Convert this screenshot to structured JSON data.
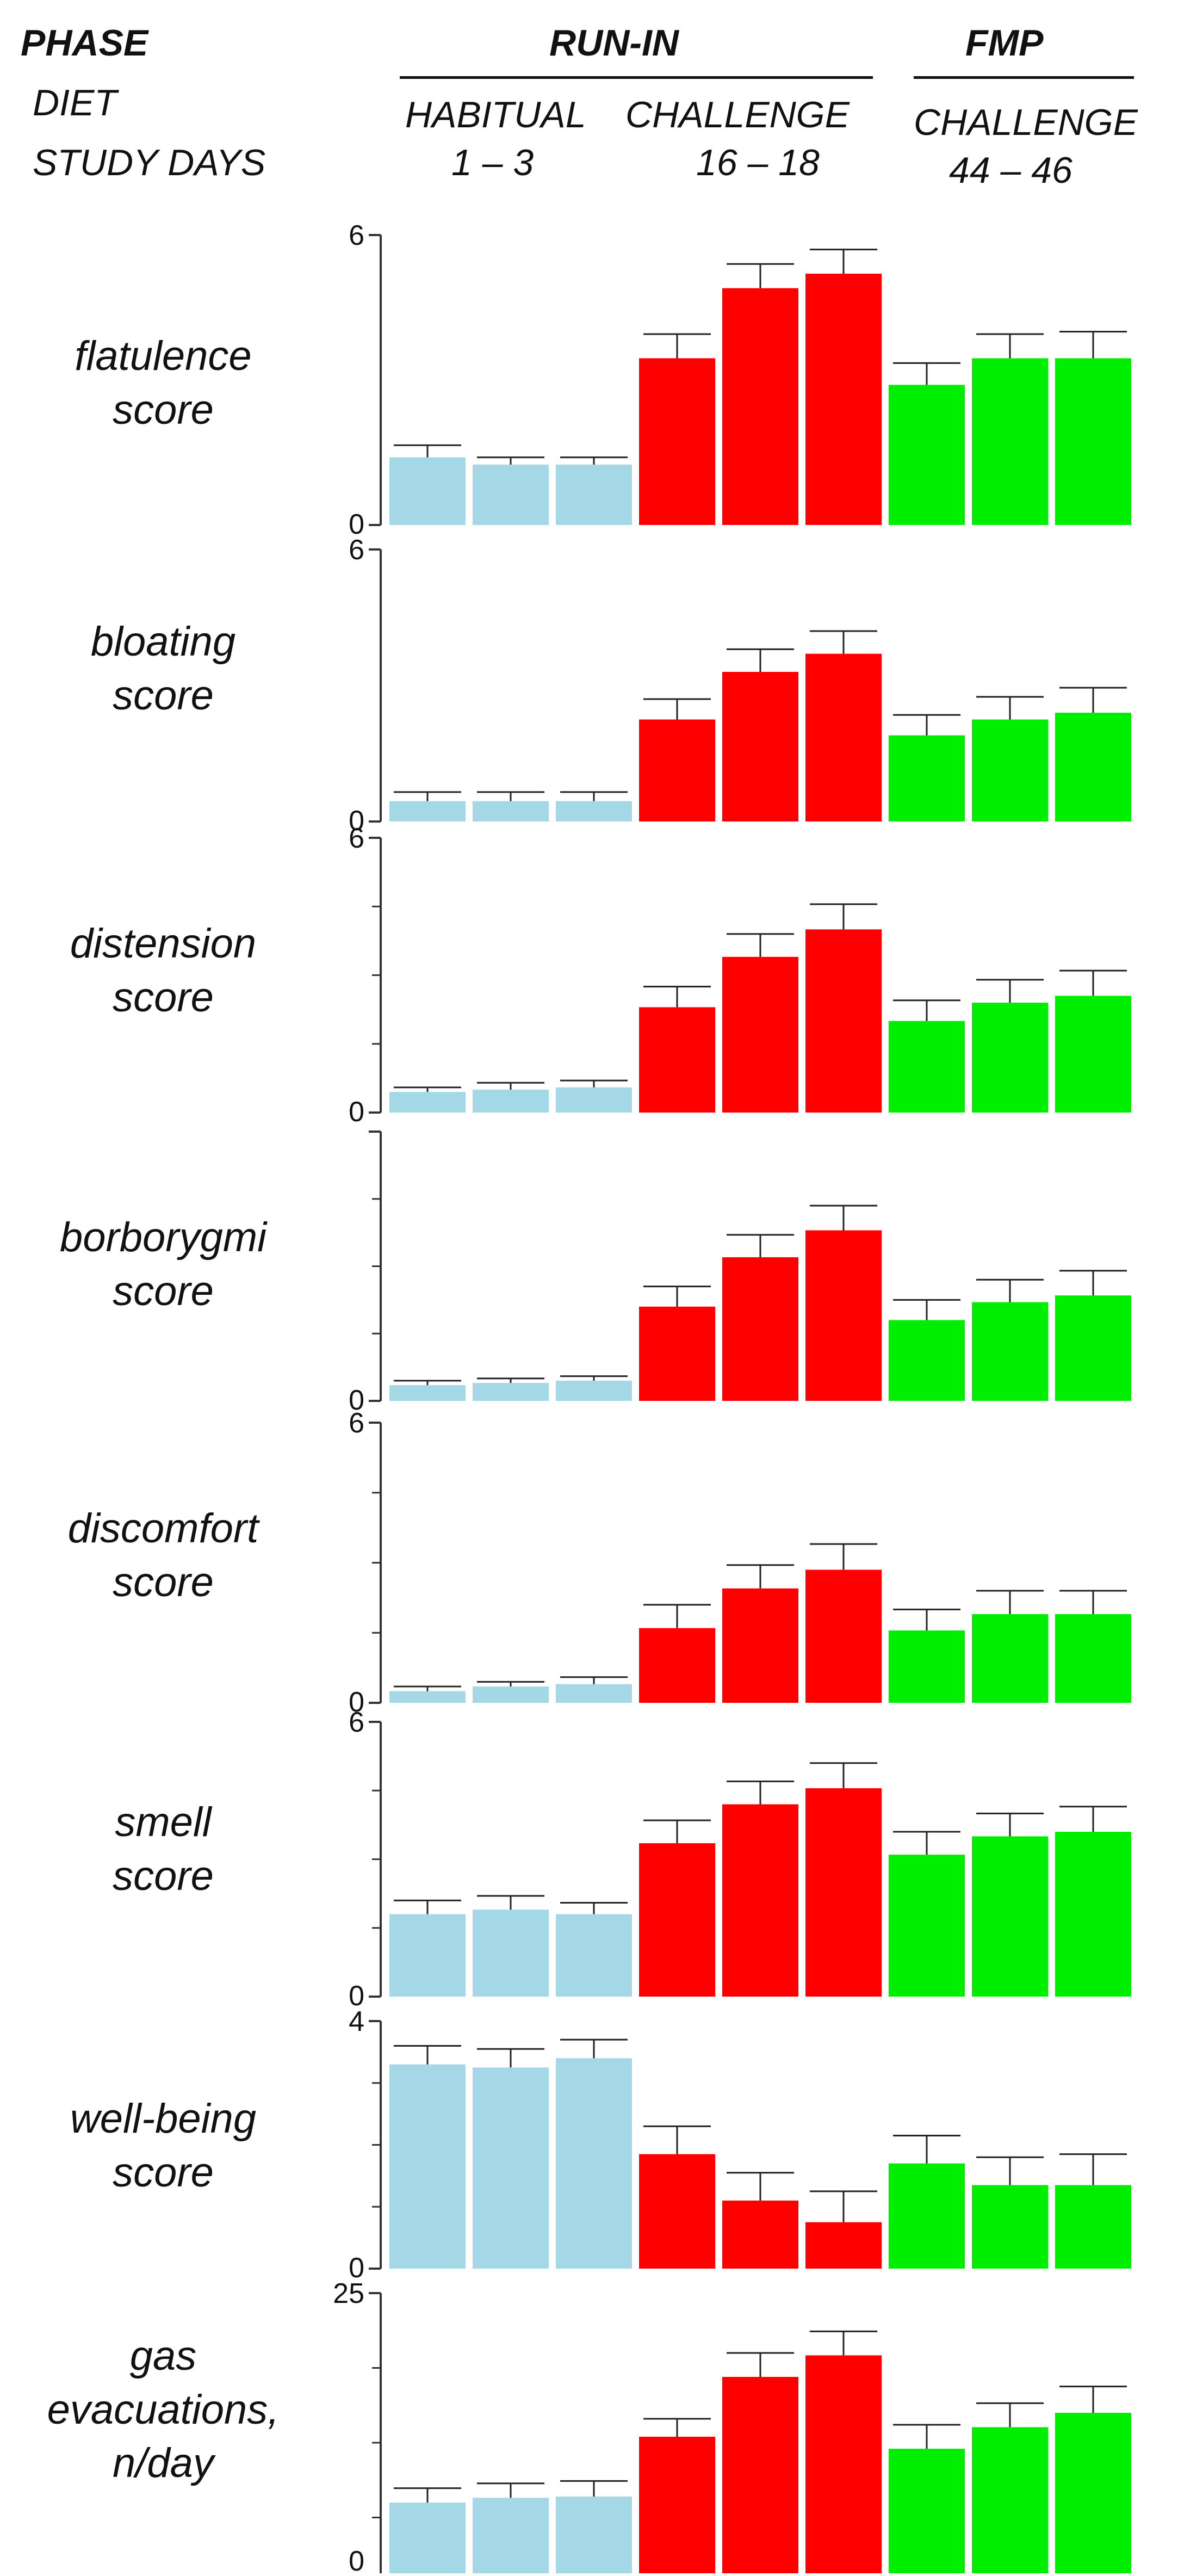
{
  "header": {
    "phase_label": "PHASE",
    "diet_label": "DIET",
    "days_label": "STUDY DAYS",
    "run_in": "RUN-IN",
    "fmp": "FMP",
    "habitual": "HABITUAL",
    "challenge_1": "CHALLENGE",
    "challenge_2": "CHALLENGE",
    "days_1": "1 – 3",
    "days_2": "16 – 18",
    "days_3": "44 – 46"
  },
  "colors": {
    "habitual": "#a5d8e6",
    "challenge": "#ff0000",
    "fmp": "#00ee00",
    "error": "#222222",
    "axis": "#333333"
  },
  "chart_data": [
    {
      "type": "bar",
      "ylabel": "flatulence\nscore",
      "ylim": [
        0,
        6
      ],
      "tick_labels": [
        "0",
        "6"
      ],
      "minor_ticks": 0,
      "categories": [
        "1",
        "2",
        "3",
        "16",
        "17",
        "18",
        "44",
        "45",
        "46"
      ],
      "values": [
        1.4,
        1.25,
        1.25,
        3.45,
        4.9,
        5.2,
        2.9,
        3.45,
        3.45
      ],
      "errors": [
        0.25,
        0.15,
        0.15,
        0.5,
        0.5,
        0.5,
        0.45,
        0.5,
        0.55
      ]
    },
    {
      "type": "bar",
      "ylabel": "bloating\nscore",
      "ylim": [
        0,
        6
      ],
      "tick_labels": [
        "0",
        "6"
      ],
      "minor_ticks": 0,
      "categories": [
        "1",
        "2",
        "3",
        "16",
        "17",
        "18",
        "44",
        "45",
        "46"
      ],
      "values": [
        0.45,
        0.45,
        0.45,
        2.25,
        3.3,
        3.7,
        1.9,
        2.25,
        2.4
      ],
      "errors": [
        0.2,
        0.2,
        0.2,
        0.45,
        0.5,
        0.5,
        0.45,
        0.5,
        0.55
      ]
    },
    {
      "type": "bar",
      "ylabel": "distension\nscore",
      "ylim": [
        0,
        6
      ],
      "tick_labels": [
        "0",
        "6"
      ],
      "minor_ticks": 3,
      "categories": [
        "1",
        "2",
        "3",
        "16",
        "17",
        "18",
        "44",
        "45",
        "46"
      ],
      "values": [
        0.45,
        0.5,
        0.55,
        2.3,
        3.4,
        4.0,
        2.0,
        2.4,
        2.55
      ],
      "errors": [
        0.1,
        0.15,
        0.15,
        0.45,
        0.5,
        0.55,
        0.45,
        0.5,
        0.55
      ]
    },
    {
      "type": "bar",
      "ylabel": "borborygmi\nscore",
      "ylim": [
        0,
        6
      ],
      "tick_labels": [
        "0",
        ""
      ],
      "minor_ticks": 3,
      "categories": [
        "1",
        "2",
        "3",
        "16",
        "17",
        "18",
        "44",
        "45",
        "46"
      ],
      "values": [
        0.35,
        0.4,
        0.45,
        2.1,
        3.2,
        3.8,
        1.8,
        2.2,
        2.35
      ],
      "errors": [
        0.1,
        0.1,
        0.1,
        0.45,
        0.5,
        0.55,
        0.45,
        0.5,
        0.55
      ]
    },
    {
      "type": "bar",
      "ylabel": "discomfort\nscore",
      "ylim": [
        0,
        6
      ],
      "tick_labels": [
        "0",
        "6"
      ],
      "minor_ticks": 3,
      "categories": [
        "1",
        "2",
        "3",
        "16",
        "17",
        "18",
        "44",
        "45",
        "46"
      ],
      "values": [
        0.25,
        0.35,
        0.4,
        1.6,
        2.45,
        2.85,
        1.55,
        1.9,
        1.9
      ],
      "errors": [
        0.1,
        0.1,
        0.15,
        0.5,
        0.5,
        0.55,
        0.45,
        0.5,
        0.5
      ]
    },
    {
      "type": "bar",
      "ylabel": "smell\nscore",
      "ylim": [
        0,
        6
      ],
      "tick_labels": [
        "0",
        "6"
      ],
      "minor_ticks": 3,
      "categories": [
        "1",
        "2",
        "3",
        "16",
        "17",
        "18",
        "44",
        "45",
        "46"
      ],
      "values": [
        1.8,
        1.9,
        1.8,
        3.35,
        4.2,
        4.55,
        3.1,
        3.5,
        3.6
      ],
      "errors": [
        0.3,
        0.3,
        0.25,
        0.5,
        0.5,
        0.55,
        0.5,
        0.5,
        0.55
      ]
    },
    {
      "type": "bar",
      "ylabel": "well-being\nscore",
      "ylim": [
        0,
        4
      ],
      "tick_labels": [
        "0",
        "4"
      ],
      "minor_ticks": 3,
      "categories": [
        "1",
        "2",
        "3",
        "16",
        "17",
        "18",
        "44",
        "45",
        "46"
      ],
      "values": [
        3.3,
        3.25,
        3.4,
        1.85,
        1.1,
        0.75,
        1.7,
        1.35,
        1.35
      ],
      "errors": [
        0.3,
        0.3,
        0.3,
        0.45,
        0.45,
        0.5,
        0.45,
        0.45,
        0.5
      ]
    },
    {
      "type": "bar",
      "ylabel": "gas\nevacuations,\nn/day",
      "ylim": [
        0,
        25
      ],
      "tick_labels": [
        "0",
        "25"
      ],
      "minor_ticks": 3,
      "categories": [
        "1",
        "2",
        "3",
        "16",
        "17",
        "18",
        "44",
        "45",
        "46"
      ],
      "values": [
        7.5,
        7.9,
        8.0,
        13.0,
        18.0,
        19.8,
        12.0,
        13.8,
        15.0
      ],
      "errors": [
        1.2,
        1.2,
        1.3,
        1.5,
        2.0,
        2.0,
        2.0,
        2.0,
        2.2
      ]
    }
  ]
}
